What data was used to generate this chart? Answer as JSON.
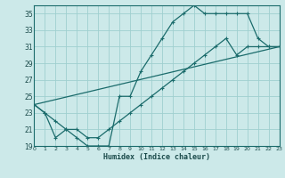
{
  "xlabel": "Humidex (Indice chaleur)",
  "bg_color": "#cce9e9",
  "grid_color": "#9fcfcf",
  "line_color": "#1a6b6b",
  "xlim": [
    0,
    23
  ],
  "ylim": [
    19,
    36
  ],
  "yticks": [
    19,
    21,
    23,
    25,
    27,
    29,
    31,
    33,
    35
  ],
  "xticks": [
    0,
    1,
    2,
    3,
    4,
    5,
    6,
    7,
    8,
    9,
    10,
    11,
    12,
    13,
    14,
    15,
    16,
    17,
    18,
    19,
    20,
    21,
    22,
    23
  ],
  "line1_x": [
    0,
    1,
    2,
    3,
    4,
    5,
    6,
    7,
    8,
    9,
    10,
    11,
    12,
    13,
    14,
    15,
    16,
    17,
    18,
    19,
    20,
    21,
    22,
    23
  ],
  "line1_y": [
    24,
    23,
    20,
    21,
    20,
    19,
    19,
    19,
    25,
    25,
    28,
    30,
    32,
    34,
    35,
    36,
    35,
    35,
    35,
    35,
    35,
    32,
    31,
    31
  ],
  "line2_x": [
    0,
    1,
    2,
    3,
    4,
    5,
    6,
    7,
    8,
    9,
    10,
    11,
    12,
    13,
    14,
    15,
    16,
    17,
    18,
    19,
    20,
    21,
    22,
    23
  ],
  "line2_y": [
    24,
    23,
    22,
    21,
    21,
    20,
    20,
    21,
    22,
    23,
    24,
    25,
    26,
    27,
    28,
    29,
    30,
    31,
    32,
    30,
    31,
    31,
    31,
    31
  ],
  "line3_x": [
    0,
    23
  ],
  "line3_y": [
    24,
    31
  ]
}
